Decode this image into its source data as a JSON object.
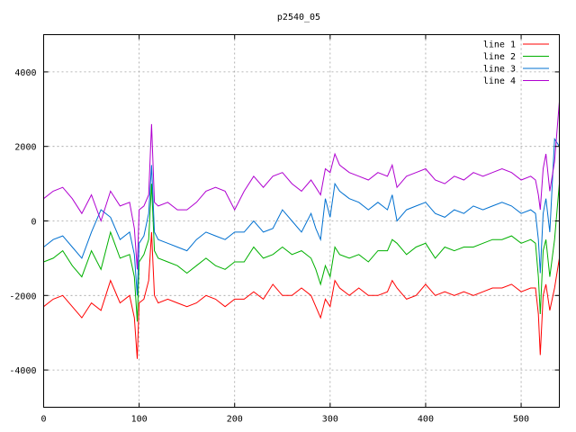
{
  "chart_data": {
    "type": "line",
    "title": "p2540_05",
    "xlabel": "",
    "ylabel": "",
    "xlim": [
      0,
      540
    ],
    "ylim": [
      -5000,
      5000
    ],
    "xticks": [
      0,
      100,
      200,
      300,
      400,
      500
    ],
    "yticks": [
      -4000,
      -2000,
      0,
      2000,
      4000
    ],
    "grid": true,
    "legend_position": "top-right",
    "series": [
      {
        "name": "line 1",
        "color": "#ff0000",
        "x": [
          0,
          10,
          20,
          30,
          40,
          50,
          60,
          70,
          80,
          90,
          95,
          98,
          100,
          105,
          110,
          113,
          116,
          120,
          130,
          140,
          150,
          160,
          170,
          180,
          190,
          200,
          210,
          220,
          230,
          240,
          250,
          260,
          270,
          280,
          285,
          290,
          295,
          300,
          305,
          310,
          320,
          330,
          340,
          350,
          360,
          365,
          370,
          380,
          390,
          400,
          410,
          420,
          430,
          440,
          450,
          460,
          470,
          480,
          490,
          500,
          510,
          515,
          518,
          520,
          523,
          526,
          530,
          535,
          540
        ],
        "y": [
          -2300,
          -2100,
          -2000,
          -2300,
          -2600,
          -2200,
          -2400,
          -1600,
          -2200,
          -2000,
          -2600,
          -3700,
          -2200,
          -2100,
          -1600,
          -300,
          -2000,
          -2200,
          -2100,
          -2200,
          -2300,
          -2200,
          -2000,
          -2100,
          -2300,
          -2100,
          -2100,
          -1900,
          -2100,
          -1700,
          -2000,
          -2000,
          -1800,
          -2000,
          -2300,
          -2600,
          -2100,
          -2300,
          -1600,
          -1800,
          -2000,
          -1800,
          -2000,
          -2000,
          -1900,
          -1600,
          -1800,
          -2100,
          -2000,
          -1700,
          -2000,
          -1900,
          -2000,
          -1900,
          -2000,
          -1900,
          -1800,
          -1800,
          -1700,
          -1900,
          -1800,
          -1800,
          -2500,
          -3600,
          -2000,
          -1700,
          -2400,
          -1800,
          -1000
        ]
      },
      {
        "name": "line 2",
        "color": "#00b000",
        "x": [
          0,
          10,
          20,
          30,
          40,
          50,
          60,
          70,
          80,
          90,
          95,
          98,
          100,
          105,
          110,
          113,
          116,
          120,
          130,
          140,
          150,
          160,
          170,
          180,
          190,
          200,
          210,
          220,
          230,
          240,
          250,
          260,
          270,
          280,
          285,
          290,
          295,
          300,
          305,
          310,
          320,
          330,
          340,
          350,
          360,
          365,
          370,
          380,
          390,
          400,
          410,
          420,
          430,
          440,
          450,
          460,
          470,
          480,
          490,
          500,
          510,
          515,
          518,
          520,
          523,
          526,
          530,
          535,
          540
        ],
        "y": [
          -1100,
          -1000,
          -800,
          -1200,
          -1500,
          -800,
          -1300,
          -300,
          -1000,
          -900,
          -1500,
          -2700,
          -1100,
          -900,
          -500,
          1000,
          -800,
          -1000,
          -1100,
          -1200,
          -1400,
          -1200,
          -1000,
          -1200,
          -1300,
          -1100,
          -1100,
          -700,
          -1000,
          -900,
          -700,
          -900,
          -800,
          -1000,
          -1300,
          -1700,
          -1200,
          -1500,
          -700,
          -900,
          -1000,
          -900,
          -1100,
          -800,
          -800,
          -500,
          -600,
          -900,
          -700,
          -600,
          -1000,
          -700,
          -800,
          -700,
          -700,
          -600,
          -500,
          -500,
          -400,
          -600,
          -500,
          -600,
          -1500,
          -2500,
          -800,
          -500,
          -1500,
          -500,
          1000
        ]
      },
      {
        "name": "line 3",
        "color": "#0070d0",
        "x": [
          0,
          10,
          20,
          30,
          40,
          50,
          60,
          70,
          80,
          90,
          95,
          98,
          100,
          105,
          110,
          113,
          116,
          120,
          130,
          140,
          150,
          160,
          170,
          180,
          190,
          200,
          210,
          220,
          230,
          240,
          250,
          260,
          270,
          280,
          285,
          290,
          295,
          300,
          305,
          310,
          320,
          330,
          340,
          350,
          360,
          365,
          370,
          380,
          390,
          400,
          410,
          420,
          430,
          440,
          450,
          460,
          470,
          480,
          490,
          500,
          510,
          515,
          518,
          520,
          523,
          526,
          530,
          535,
          540
        ],
        "y": [
          -700,
          -500,
          -400,
          -700,
          -1000,
          -300,
          300,
          100,
          -500,
          -300,
          -900,
          -2000,
          -600,
          -400,
          200,
          1500,
          -300,
          -500,
          -600,
          -700,
          -800,
          -500,
          -300,
          -400,
          -500,
          -300,
          -300,
          0,
          -300,
          -200,
          300,
          0,
          -300,
          200,
          -200,
          -500,
          600,
          100,
          1000,
          800,
          600,
          500,
          300,
          500,
          300,
          700,
          0,
          300,
          400,
          500,
          200,
          100,
          300,
          200,
          400,
          300,
          400,
          500,
          400,
          200,
          300,
          200,
          -500,
          -1400,
          200,
          600,
          -300,
          2200,
          2000
        ]
      },
      {
        "name": "line 4",
        "color": "#b000d0",
        "x": [
          0,
          10,
          20,
          30,
          40,
          50,
          60,
          70,
          80,
          90,
          95,
          98,
          100,
          105,
          110,
          113,
          116,
          120,
          130,
          140,
          150,
          160,
          170,
          180,
          190,
          200,
          210,
          220,
          230,
          240,
          250,
          260,
          270,
          280,
          285,
          290,
          295,
          300,
          305,
          310,
          320,
          330,
          340,
          350,
          360,
          365,
          370,
          380,
          390,
          400,
          410,
          420,
          430,
          440,
          450,
          460,
          470,
          480,
          490,
          500,
          510,
          515,
          518,
          520,
          523,
          526,
          530,
          535,
          540
        ],
        "y": [
          600,
          800,
          900,
          600,
          200,
          700,
          0,
          800,
          400,
          500,
          -200,
          -1300,
          300,
          400,
          700,
          2600,
          500,
          400,
          500,
          300,
          300,
          500,
          800,
          900,
          800,
          300,
          800,
          1200,
          900,
          1200,
          1300,
          1000,
          800,
          1100,
          900,
          700,
          1400,
          1300,
          1800,
          1500,
          1300,
          1200,
          1100,
          1300,
          1200,
          1500,
          900,
          1200,
          1300,
          1400,
          1100,
          1000,
          1200,
          1100,
          1300,
          1200,
          1300,
          1400,
          1300,
          1100,
          1200,
          1100,
          700,
          300,
          1400,
          1800,
          800,
          1600,
          3200
        ]
      }
    ]
  }
}
